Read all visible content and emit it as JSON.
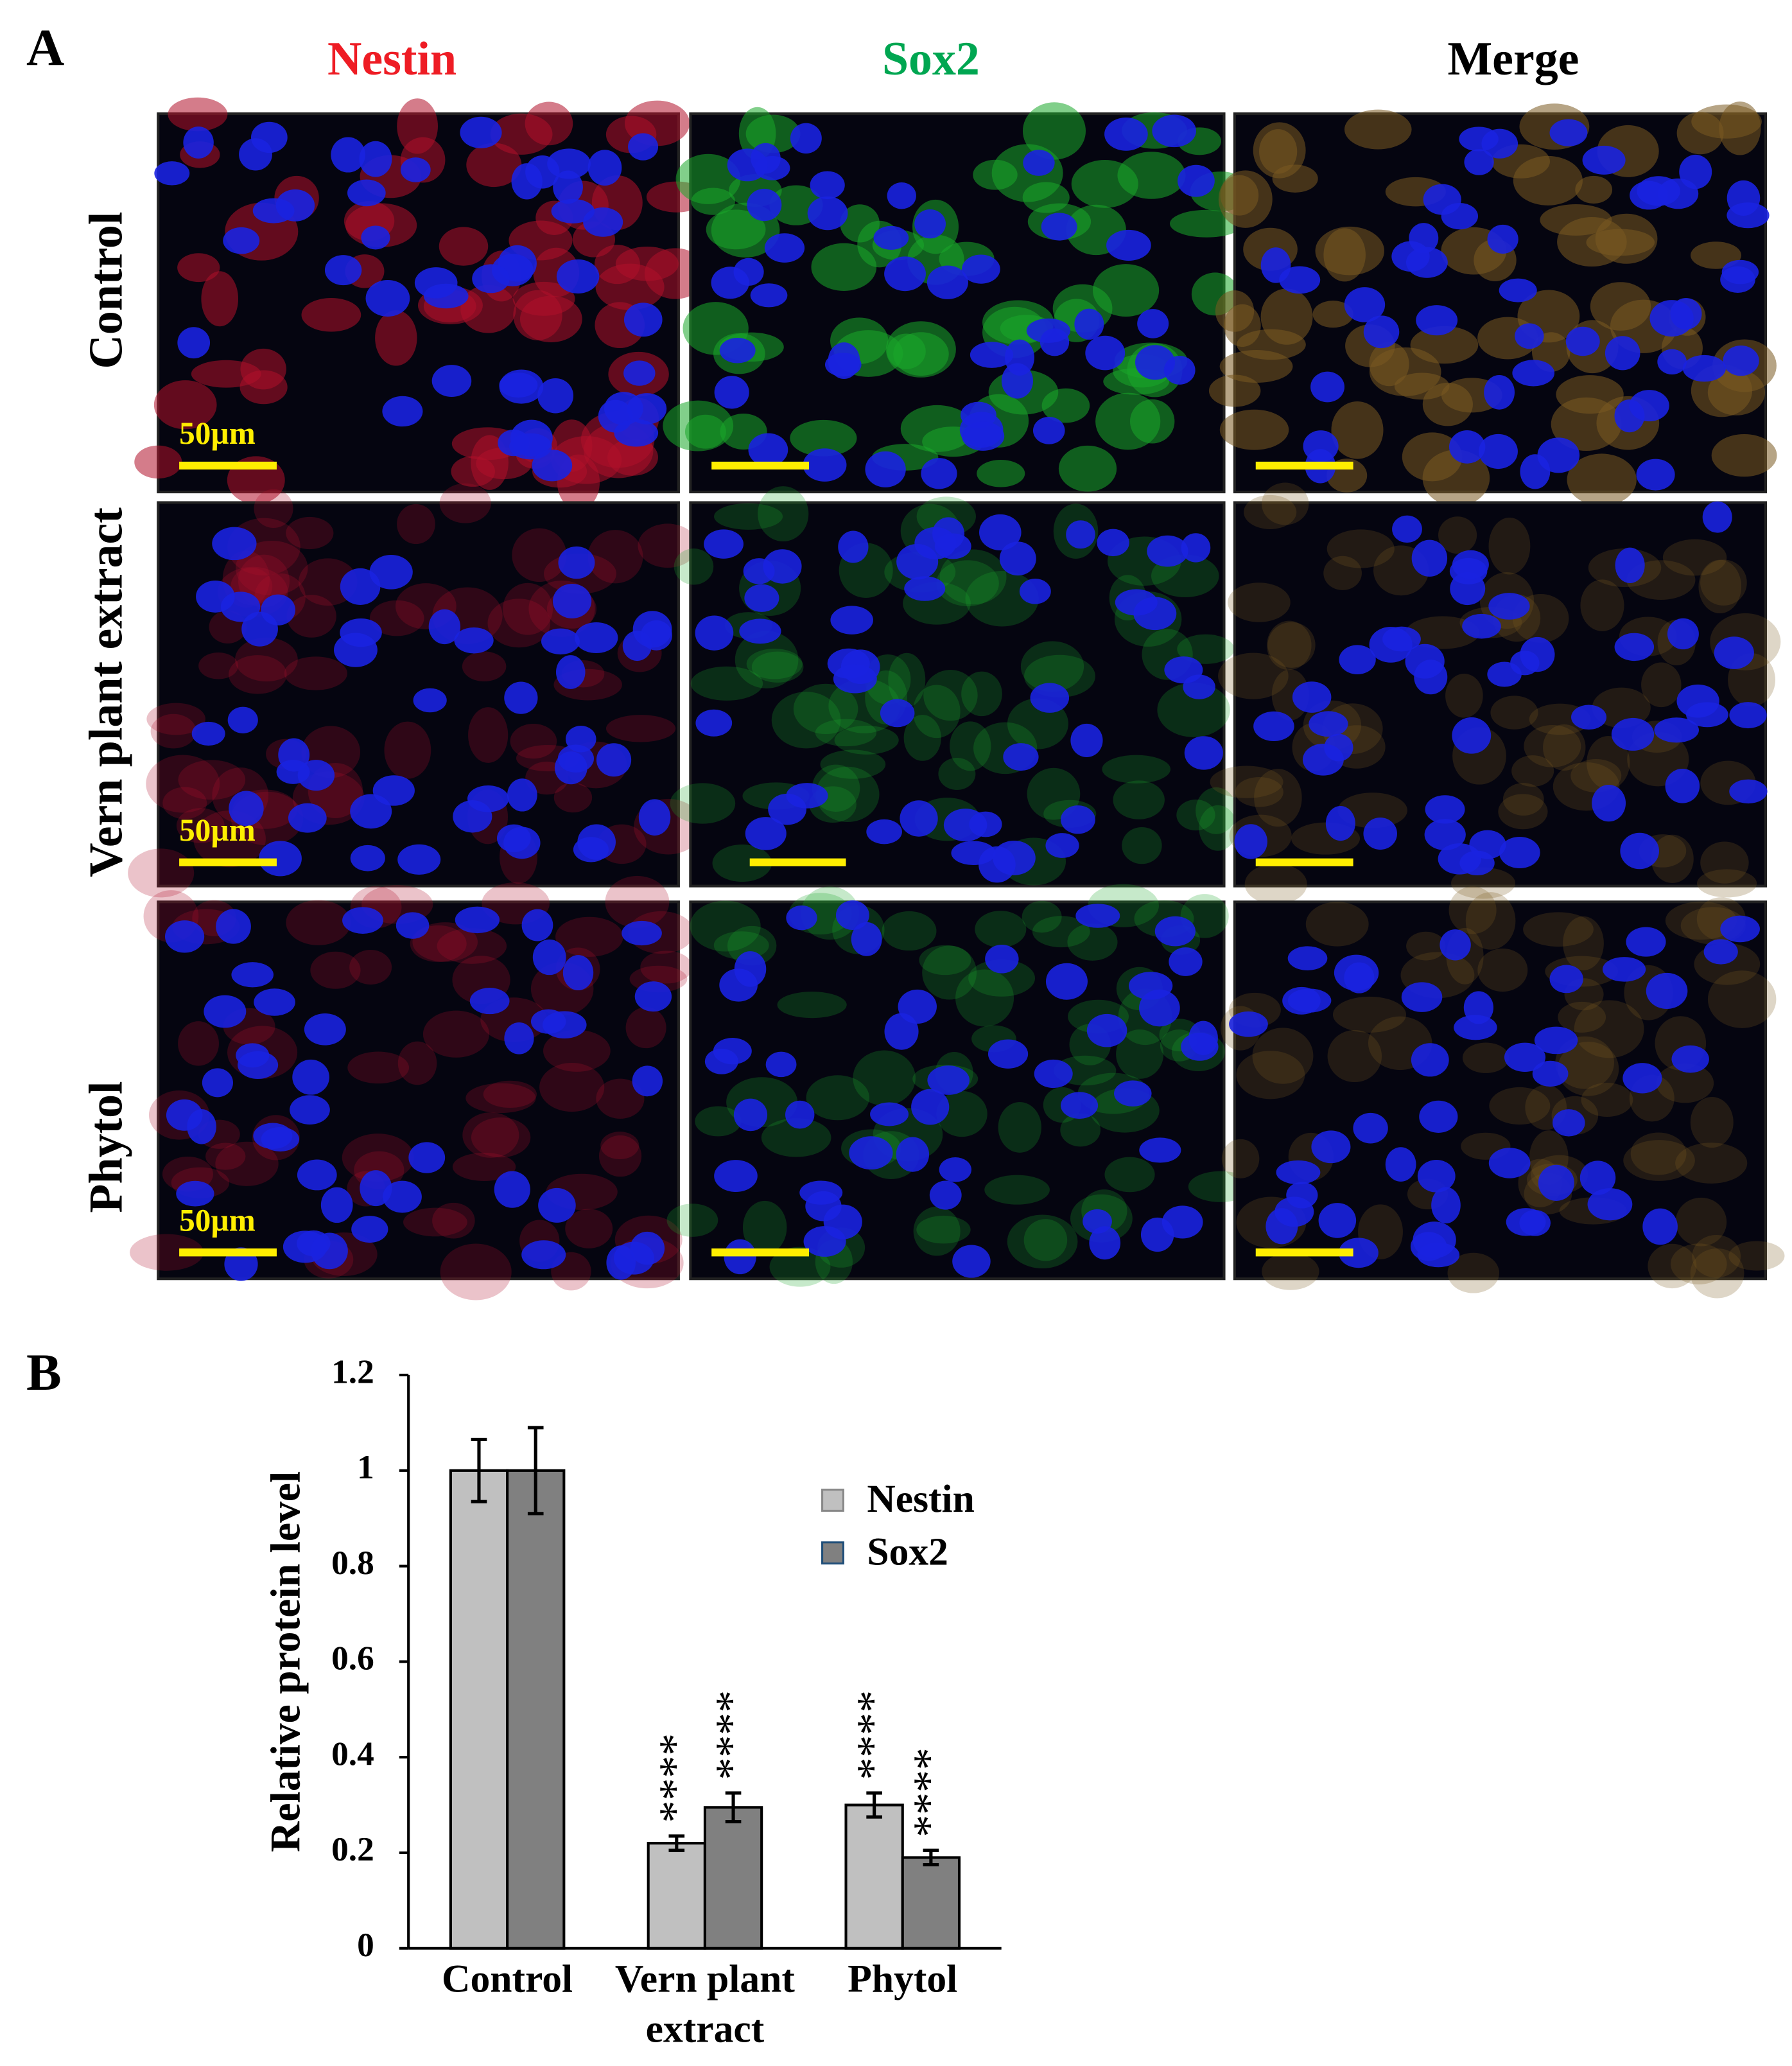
{
  "panel_a": {
    "label": "A",
    "columns": [
      "Nestin",
      "Sox2",
      "Merge"
    ],
    "column_colors": [
      "#ee1c24",
      "#00a651",
      "#000000"
    ],
    "rows": [
      "Control",
      "Vern  plant extract",
      "Phytol"
    ],
    "scale_labels": [
      "50µm",
      "50µm",
      "50µm"
    ]
  },
  "chart_data": {
    "type": "bar",
    "panel_label": "B",
    "y_label": "Relative protein level",
    "categories": [
      "Control",
      "Vern plant extract",
      "Phytol"
    ],
    "series": [
      {
        "name": "Nestin",
        "color": "#c0c0c0",
        "values": [
          1,
          0.22,
          0.3
        ],
        "errors": [
          0.065,
          0.015,
          0.025
        ],
        "sig_labels": [
          null,
          "****",
          "****"
        ]
      },
      {
        "name": "Sox2",
        "color": "#808080",
        "values": [
          1,
          0.295,
          0.19
        ],
        "errors": [
          0.09,
          0.03,
          0.015
        ],
        "sig_labels": [
          null,
          "****",
          "****"
        ]
      }
    ],
    "ylim": [
      0,
      1.2
    ],
    "yticks": [
      0,
      0.2,
      0.4,
      0.6,
      0.8,
      1,
      1.2
    ],
    "grid": false,
    "legend": "upper right"
  }
}
